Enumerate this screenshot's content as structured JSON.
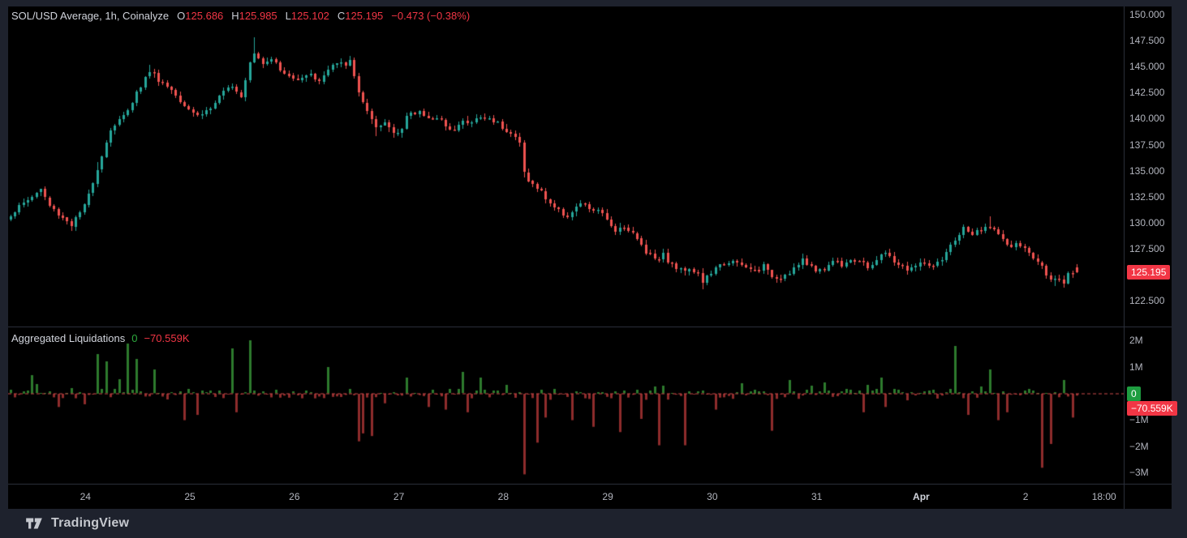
{
  "header": {
    "legend_title": "SOL/USD Average, 1h, Coinalyze",
    "ohlc_tokens": [
      {
        "k": "O",
        "v": "125.686"
      },
      {
        "k": "H",
        "v": "125.985"
      },
      {
        "k": "L",
        "v": "125.102"
      },
      {
        "k": "C",
        "v": "125.195"
      }
    ],
    "change_text": "−0.473 (−0.38%)"
  },
  "indicator_legend": {
    "title": "Aggregated Liquidations",
    "pos_value": "0",
    "neg_value": "−70.559K"
  },
  "price_axis": {
    "ticks": [
      {
        "label": "150.000",
        "value": 150.0
      },
      {
        "label": "147.500",
        "value": 147.5
      },
      {
        "label": "145.000",
        "value": 145.0
      },
      {
        "label": "142.500",
        "value": 142.5
      },
      {
        "label": "140.000",
        "value": 140.0
      },
      {
        "label": "137.500",
        "value": 137.5
      },
      {
        "label": "135.000",
        "value": 135.0
      },
      {
        "label": "132.500",
        "value": 132.5
      },
      {
        "label": "130.000",
        "value": 130.0
      },
      {
        "label": "127.500",
        "value": 127.5
      },
      {
        "label": "122.500",
        "value": 122.5
      }
    ],
    "badge": {
      "label": "125.195",
      "value": 125.195
    }
  },
  "liq_axis": {
    "ticks": [
      {
        "label": "2M",
        "value": 2
      },
      {
        "label": "1M",
        "value": 1
      },
      {
        "label": "−1M",
        "value": -1
      },
      {
        "label": "−2M",
        "value": -2
      },
      {
        "label": "−3M",
        "value": -3
      }
    ],
    "badges": [
      {
        "label": "0",
        "value": 0,
        "kind": "pos"
      },
      {
        "label": "−70.559K",
        "value": -0.0706,
        "kind": "neg"
      }
    ]
  },
  "time_axis": {
    "ticks": [
      {
        "label": "24",
        "i": 17.3
      },
      {
        "label": "25",
        "i": 41.3
      },
      {
        "label": "26",
        "i": 65.3
      },
      {
        "label": "27",
        "i": 89.3
      },
      {
        "label": "28",
        "i": 113.3
      },
      {
        "label": "29",
        "i": 137.3
      },
      {
        "label": "30",
        "i": 161.3
      },
      {
        "label": "31",
        "i": 185.3
      },
      {
        "label": "Apr",
        "i": 209.3,
        "emph": true
      },
      {
        "label": "2",
        "i": 233.3
      },
      {
        "label": "18:00",
        "i": 251.3
      }
    ]
  },
  "footer": {
    "brand": "TradingView"
  },
  "colors": {
    "up": "#26a69a",
    "down": "#ef5350",
    "liq_pos": "#2d7a2d",
    "liq_neg": "#8e2c2c",
    "accent_red": "#f23645",
    "badge_green": "#1e9d40",
    "zero_line": "#cc4b4b",
    "axis_text": "#b2b5be",
    "bg_outer": "#1e222d",
    "bg_chart": "#000000",
    "border": "#2a2e39"
  },
  "chart_data": [
    {
      "type": "candlestick",
      "title": "SOL/USD Average, 1h, Coinalyze",
      "symbol": "SOL/USD Average",
      "interval": "1h",
      "source": "Coinalyze",
      "current_ohlc": {
        "open": 125.686,
        "high": 125.985,
        "low": 125.102,
        "close": 125.195,
        "change": -0.473,
        "change_pct": -0.38
      },
      "ylim": [
        121.5,
        150.5
      ],
      "y_ticks": [
        150.0,
        147.5,
        145.0,
        142.5,
        140.0,
        137.5,
        135.0,
        132.5,
        130.0,
        127.5,
        125.0,
        122.5
      ],
      "x_day_ticks": [
        "24",
        "25",
        "26",
        "27",
        "28",
        "29",
        "30",
        "31",
        "Apr",
        "2",
        "18:00"
      ],
      "candle_count": 246,
      "price_anchors": [
        [
          0,
          130.8
        ],
        [
          4,
          132.2
        ],
        [
          7,
          133.2
        ],
        [
          9,
          131.6
        ],
        [
          14,
          129.8
        ],
        [
          17,
          131.5
        ],
        [
          21,
          136.5
        ],
        [
          23,
          139.0
        ],
        [
          26,
          140.2
        ],
        [
          29,
          142.5
        ],
        [
          32,
          144.6
        ],
        [
          35,
          143.4
        ],
        [
          37,
          142.8
        ],
        [
          40,
          141.4
        ],
        [
          43,
          140.3
        ],
        [
          46,
          141.0
        ],
        [
          48,
          142.0
        ],
        [
          51,
          143.3
        ],
        [
          53,
          142.2
        ],
        [
          55,
          145.6
        ],
        [
          56,
          146.4
        ],
        [
          58,
          145.4
        ],
        [
          60,
          145.9
        ],
        [
          62,
          144.6
        ],
        [
          65,
          143.8
        ],
        [
          68,
          144.3
        ],
        [
          71,
          143.7
        ],
        [
          74,
          145.1
        ],
        [
          76,
          145.2
        ],
        [
          78,
          145.4
        ],
        [
          80,
          142.6
        ],
        [
          82,
          140.6
        ],
        [
          84,
          138.9
        ],
        [
          86,
          139.6
        ],
        [
          88,
          138.7
        ],
        [
          90,
          139.1
        ],
        [
          91,
          140.2
        ],
        [
          94,
          140.7
        ],
        [
          97,
          140.0
        ],
        [
          100,
          139.5
        ],
        [
          102,
          138.9
        ],
        [
          104,
          139.8
        ],
        [
          105,
          139.5
        ],
        [
          108,
          140.1
        ],
        [
          111,
          139.9
        ],
        [
          113,
          139.3
        ],
        [
          115,
          138.6
        ],
        [
          117,
          137.6
        ],
        [
          118,
          134.8
        ],
        [
          120,
          133.6
        ],
        [
          122,
          132.9
        ],
        [
          124,
          131.9
        ],
        [
          126,
          131.1
        ],
        [
          128,
          130.7
        ],
        [
          130,
          131.4
        ],
        [
          132,
          131.8
        ],
        [
          133,
          131.1
        ],
        [
          135,
          131.3
        ],
        [
          137,
          130.1
        ],
        [
          139,
          129.4
        ],
        [
          141,
          129.7
        ],
        [
          143,
          128.9
        ],
        [
          145,
          127.9
        ],
        [
          146,
          127.3
        ],
        [
          148,
          126.6
        ],
        [
          150,
          126.9
        ],
        [
          152,
          125.9
        ],
        [
          154,
          125.4
        ],
        [
          156,
          125.7
        ],
        [
          158,
          125.1
        ],
        [
          159,
          124.3
        ],
        [
          161,
          125.2
        ],
        [
          163,
          125.8
        ],
        [
          165,
          126.3
        ],
        [
          167,
          126.0
        ],
        [
          169,
          125.6
        ],
        [
          171,
          125.4
        ],
        [
          173,
          125.8
        ],
        [
          174,
          125.2
        ],
        [
          176,
          124.7
        ],
        [
          178,
          125.0
        ],
        [
          180,
          125.6
        ],
        [
          182,
          126.3
        ],
        [
          184,
          125.8
        ],
        [
          186,
          125.3
        ],
        [
          187,
          125.6
        ],
        [
          189,
          126.4
        ],
        [
          191,
          126.0
        ],
        [
          193,
          126.6
        ],
        [
          195,
          126.2
        ],
        [
          197,
          125.7
        ],
        [
          199,
          126.5
        ],
        [
          201,
          127.1
        ],
        [
          202,
          126.6
        ],
        [
          204,
          126.0
        ],
        [
          206,
          125.5
        ],
        [
          208,
          125.8
        ],
        [
          210,
          126.2
        ],
        [
          212,
          125.7
        ],
        [
          214,
          126.3
        ],
        [
          215,
          127.0
        ],
        [
          217,
          128.4
        ],
        [
          219,
          129.4
        ],
        [
          221,
          128.9
        ],
        [
          223,
          129.2
        ],
        [
          225,
          129.8
        ],
        [
          227,
          128.8
        ],
        [
          228,
          128.2
        ],
        [
          230,
          127.7
        ],
        [
          232,
          127.9
        ],
        [
          234,
          127.0
        ],
        [
          236,
          126.2
        ],
        [
          238,
          125.2
        ],
        [
          240,
          124.4
        ],
        [
          242,
          124.1
        ],
        [
          243,
          124.9
        ],
        [
          245,
          125.4
        ]
      ],
      "high_boosts": [
        [
          56,
          1.3
        ],
        [
          32,
          0.5
        ],
        [
          225,
          0.9
        ],
        [
          20,
          0.5
        ]
      ],
      "low_boosts": [
        [
          159,
          0.5
        ],
        [
          240,
          0.35
        ],
        [
          84,
          0.5
        ],
        [
          118,
          0.4
        ]
      ],
      "last_candle": {
        "o": 125.686,
        "h": 125.985,
        "l": 125.102,
        "c": 125.195
      },
      "colors": {
        "up": "#26a69a",
        "down": "#ef5350"
      }
    },
    {
      "type": "bar",
      "title": "Aggregated Liquidations",
      "current": {
        "positive": 0,
        "negative": -70559
      },
      "y_ticks_M": [
        2,
        1,
        0,
        -1,
        -2,
        -3
      ],
      "ylim_M": [
        -3.4,
        2.4
      ],
      "zero_dashed_line": true,
      "bar_count": 246,
      "spikes_M": [
        [
          5,
          0.7
        ],
        [
          11,
          -0.5
        ],
        [
          20,
          1.5
        ],
        [
          22,
          1.2
        ],
        [
          27,
          1.9
        ],
        [
          29,
          1.3
        ],
        [
          33,
          0.9
        ],
        [
          40,
          -1.0
        ],
        [
          43,
          -0.8
        ],
        [
          51,
          1.7
        ],
        [
          52,
          -0.7
        ],
        [
          55,
          2.0
        ],
        [
          73,
          1.0
        ],
        [
          80,
          -1.8
        ],
        [
          81,
          -1.5
        ],
        [
          83,
          -1.6
        ],
        [
          91,
          0.6
        ],
        [
          96,
          -0.5
        ],
        [
          100,
          -0.6
        ],
        [
          104,
          0.8
        ],
        [
          105,
          -0.7
        ],
        [
          108,
          0.6
        ],
        [
          118,
          -3.05
        ],
        [
          121,
          -1.85
        ],
        [
          123,
          -0.9
        ],
        [
          129,
          -1.0
        ],
        [
          134,
          -1.25
        ],
        [
          140,
          -1.45
        ],
        [
          145,
          -0.95
        ],
        [
          149,
          -1.95
        ],
        [
          150,
          0.3
        ],
        [
          155,
          -1.95
        ],
        [
          162,
          -0.6
        ],
        [
          175,
          -1.4
        ],
        [
          179,
          0.5
        ],
        [
          187,
          0.4
        ],
        [
          196,
          -0.7
        ],
        [
          200,
          0.6
        ],
        [
          201,
          -0.5
        ],
        [
          217,
          1.8
        ],
        [
          220,
          -0.8
        ],
        [
          225,
          0.9
        ],
        [
          227,
          -1.0
        ],
        [
          229,
          -0.7
        ],
        [
          237,
          -2.8
        ],
        [
          239,
          -1.9
        ],
        [
          242,
          0.5
        ],
        [
          244,
          -0.9
        ],
        [
          245,
          -0.07
        ]
      ],
      "baseline_noise_M": 0.18,
      "colors": {
        "pos": "#2d7a2d",
        "neg": "#8e2c2c"
      }
    }
  ]
}
